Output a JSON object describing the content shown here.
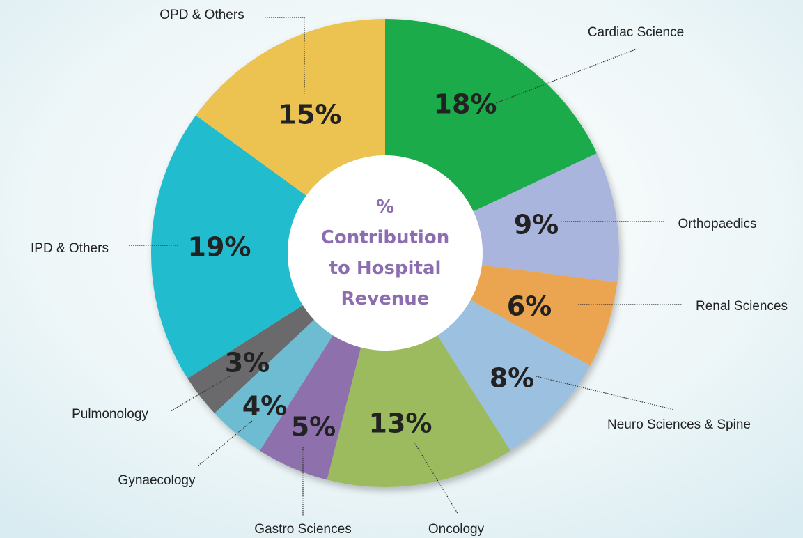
{
  "chart_data": {
    "type": "pie",
    "donut": true,
    "title": "% Contribution to Hospital Revenue",
    "categories": [
      "Cardiac Science",
      "Orthopaedics",
      "Renal Sciences",
      "Neuro Sciences & Spine",
      "Oncology",
      "Gastro Sciences",
      "Gynaecology",
      "Pulmonology",
      "IPD & Others",
      "OPD & Others"
    ],
    "values": [
      18,
      9,
      6,
      8,
      13,
      5,
      4,
      3,
      19,
      15
    ],
    "value_labels": [
      "18%",
      "9%",
      "6%",
      "8%",
      "13%",
      "5%",
      "4%",
      "3%",
      "19%",
      "15%"
    ],
    "colors": [
      "#1aab4b",
      "#a9b5dc",
      "#eba551",
      "#9cc0df",
      "#9cbb5e",
      "#8e70ac",
      "#6dbcd2",
      "#6a6b6d",
      "#22bccf",
      "#ecc351"
    ]
  }
}
